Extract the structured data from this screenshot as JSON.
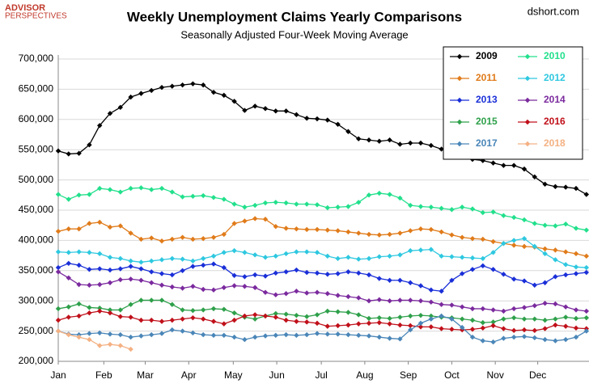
{
  "branding": {
    "logo_top": "ADVISOR",
    "logo_bottom": "PERSPECTIVES",
    "site": "dshort.com"
  },
  "chart_data": {
    "type": "line",
    "title": "Weekly Unemployment Claims Yearly Comparisons",
    "subtitle": "Seasonally Adjusted Four-Week Moving Average",
    "x": [
      1,
      2,
      3,
      4,
      5,
      6,
      7,
      8,
      9,
      10,
      11,
      12,
      13,
      14,
      15,
      16,
      17,
      18,
      19,
      20,
      21,
      22,
      23,
      24,
      25,
      26,
      27,
      28,
      29,
      30,
      31,
      32,
      33,
      34,
      35,
      36,
      37,
      38,
      39,
      40,
      41,
      42,
      43,
      44,
      45,
      46,
      47,
      48,
      49,
      50,
      51,
      52
    ],
    "xlim": [
      1,
      52.25
    ],
    "xticks": [
      {
        "value": 1,
        "label": "Jan"
      },
      {
        "value": 5.4,
        "label": "Feb"
      },
      {
        "value": 9.4,
        "label": "Mar"
      },
      {
        "value": 13.6,
        "label": "Apr"
      },
      {
        "value": 17.9,
        "label": "May"
      },
      {
        "value": 22.1,
        "label": "Jun"
      },
      {
        "value": 26.4,
        "label": "Jul"
      },
      {
        "value": 30.6,
        "label": "Aug"
      },
      {
        "value": 34.8,
        "label": "Sep"
      },
      {
        "value": 39,
        "label": "Oct"
      },
      {
        "value": 43.2,
        "label": "Nov"
      },
      {
        "value": 47.3,
        "label": "Dec"
      }
    ],
    "ylim": [
      200000,
      700000
    ],
    "yticks": [
      {
        "value": 200000,
        "label": "200,000"
      },
      {
        "value": 250000,
        "label": "250,000"
      },
      {
        "value": 300000,
        "label": "300,000"
      },
      {
        "value": 350000,
        "label": "350,000"
      },
      {
        "value": 400000,
        "label": "400,000"
      },
      {
        "value": 450000,
        "label": "450,000"
      },
      {
        "value": 500000,
        "label": "500,000"
      },
      {
        "value": 550000,
        "label": "550,000"
      },
      {
        "value": 600000,
        "label": "600,000"
      },
      {
        "value": 650000,
        "label": "650,000"
      },
      {
        "value": 700000,
        "label": "700,000"
      }
    ],
    "grid": true,
    "legend": "upper right",
    "series": [
      {
        "name": "2009",
        "color": "#000000",
        "values": [
          548000,
          543000,
          544000,
          558000,
          590000,
          610000,
          620000,
          637000,
          643000,
          648000,
          653000,
          655000,
          657000,
          659000,
          657000,
          645000,
          640000,
          630000,
          615000,
          622000,
          618000,
          614000,
          614000,
          608000,
          602000,
          601000,
          599000,
          592000,
          580000,
          568000,
          566000,
          564000,
          566000,
          559000,
          561000,
          561000,
          557000,
          551000,
          548000,
          543000,
          534000,
          532000,
          528000,
          524000,
          524000,
          518000,
          505000,
          493000,
          489000,
          488000,
          486000,
          476000
        ]
      },
      {
        "name": "2010",
        "color": "#22e08c",
        "values": [
          476000,
          468000,
          475000,
          476000,
          486000,
          484000,
          480000,
          486000,
          487000,
          484000,
          486000,
          480000,
          472000,
          473000,
          474000,
          471000,
          468000,
          460000,
          455000,
          458000,
          462000,
          463000,
          462000,
          460000,
          460000,
          459000,
          454000,
          455000,
          456000,
          463000,
          475000,
          478000,
          476000,
          470000,
          458000,
          456000,
          455000,
          453000,
          451000,
          455000,
          452000,
          446000,
          447000,
          441000,
          438000,
          434000,
          428000,
          425000,
          424000,
          427000,
          420000,
          417000
        ]
      },
      {
        "name": "2011",
        "color": "#e07b1a",
        "values": [
          415000,
          419000,
          419000,
          428000,
          430000,
          422000,
          424000,
          412000,
          402000,
          404000,
          399000,
          402000,
          405000,
          402000,
          403000,
          405000,
          410000,
          428000,
          432000,
          436000,
          435000,
          423000,
          420000,
          419000,
          418000,
          418000,
          417000,
          416000,
          414000,
          412000,
          410000,
          409000,
          410000,
          412000,
          416000,
          419000,
          418000,
          414000,
          409000,
          405000,
          403000,
          402000,
          398000,
          395000,
          392000,
          390000,
          389000,
          386000,
          384000,
          381000,
          378000,
          374000
        ]
      },
      {
        "name": "2012",
        "color": "#2ec8e0",
        "values": [
          381000,
          380000,
          381000,
          380000,
          378000,
          372000,
          370000,
          366000,
          364000,
          366000,
          368000,
          370000,
          369000,
          366000,
          370000,
          374000,
          380000,
          383000,
          380000,
          376000,
          372000,
          374000,
          378000,
          381000,
          381000,
          380000,
          374000,
          370000,
          372000,
          369000,
          370000,
          373000,
          374000,
          376000,
          383000,
          384000,
          385000,
          374000,
          373000,
          372000,
          371000,
          370000,
          380000,
          395000,
          400000,
          403000,
          390000,
          378000,
          368000,
          360000,
          356000,
          355000
        ]
      },
      {
        "name": "2013",
        "color": "#1a2fd8",
        "values": [
          355000,
          362000,
          359000,
          352000,
          353000,
          351000,
          353000,
          357000,
          353000,
          348000,
          345000,
          343000,
          350000,
          357000,
          359000,
          361000,
          355000,
          342000,
          340000,
          343000,
          341000,
          346000,
          348000,
          351000,
          347000,
          346000,
          344000,
          345000,
          348000,
          346000,
          343000,
          337000,
          334000,
          334000,
          330000,
          325000,
          318000,
          316000,
          334000,
          345000,
          352000,
          358000,
          352000,
          344000,
          336000,
          333000,
          326000,
          330000,
          340000,
          343000,
          345000,
          347000
        ]
      },
      {
        "name": "2014",
        "color": "#7b2a9e",
        "values": [
          348000,
          338000,
          327000,
          326000,
          327000,
          330000,
          335000,
          336000,
          334000,
          330000,
          326000,
          323000,
          321000,
          324000,
          319000,
          318000,
          322000,
          325000,
          324000,
          322000,
          314000,
          310000,
          312000,
          316000,
          313000,
          314000,
          312000,
          309000,
          307000,
          305000,
          300000,
          302000,
          300000,
          301000,
          301000,
          300000,
          298000,
          294000,
          293000,
          290000,
          287000,
          287000,
          285000,
          283000,
          287000,
          289000,
          292000,
          296000,
          295000,
          290000,
          285000,
          283000
        ]
      },
      {
        "name": "2015",
        "color": "#2ea04a",
        "values": [
          287000,
          290000,
          295000,
          289000,
          288000,
          285000,
          285000,
          294000,
          301000,
          301000,
          301000,
          294000,
          285000,
          284000,
          285000,
          287000,
          286000,
          280000,
          273000,
          270000,
          275000,
          279000,
          278000,
          276000,
          274000,
          277000,
          283000,
          282000,
          281000,
          277000,
          271000,
          272000,
          271000,
          273000,
          275000,
          276000,
          275000,
          273000,
          272000,
          270000,
          268000,
          264000,
          265000,
          270000,
          272000,
          270000,
          270000,
          268000,
          270000,
          273000,
          271000,
          272000
        ]
      },
      {
        "name": "2016",
        "color": "#c0101a",
        "values": [
          268000,
          273000,
          275000,
          280000,
          283000,
          280000,
          274000,
          273000,
          268000,
          268000,
          266000,
          268000,
          270000,
          272000,
          270000,
          266000,
          262000,
          268000,
          275000,
          277000,
          275000,
          273000,
          268000,
          266000,
          265000,
          263000,
          258000,
          259000,
          260000,
          262000,
          263000,
          264000,
          262000,
          260000,
          259000,
          257000,
          257000,
          254000,
          253000,
          252000,
          253000,
          255000,
          259000,
          254000,
          251000,
          252000,
          251000,
          254000,
          260000,
          258000,
          255000,
          254000
        ]
      },
      {
        "name": "2017",
        "color": "#4a86b8",
        "values": [
          250000,
          245000,
          244000,
          246000,
          247000,
          245000,
          244000,
          240000,
          242000,
          244000,
          246000,
          252000,
          250000,
          247000,
          244000,
          243000,
          243000,
          240000,
          236000,
          240000,
          242000,
          243000,
          244000,
          243000,
          244000,
          246000,
          245000,
          245000,
          244000,
          243000,
          242000,
          240000,
          238000,
          237000,
          252000,
          263000,
          270000,
          275000,
          270000,
          256000,
          240000,
          234000,
          232000,
          238000,
          240000,
          241000,
          239000,
          236000,
          234000,
          236000,
          240000,
          250000
        ]
      },
      {
        "name": "2018",
        "color": "#f4b183",
        "values": [
          250000,
          244000,
          240000,
          236000,
          226000,
          228000,
          226000,
          220000,
          null,
          null,
          null,
          null,
          null,
          null,
          null,
          null,
          null,
          null,
          null,
          null,
          null,
          null,
          null,
          null,
          null,
          null,
          null,
          null,
          null,
          null,
          null,
          null,
          null,
          null,
          null,
          null,
          null,
          null,
          null,
          null,
          null,
          null,
          null,
          null,
          null,
          null,
          null,
          null,
          null,
          null,
          null,
          null
        ]
      }
    ]
  }
}
